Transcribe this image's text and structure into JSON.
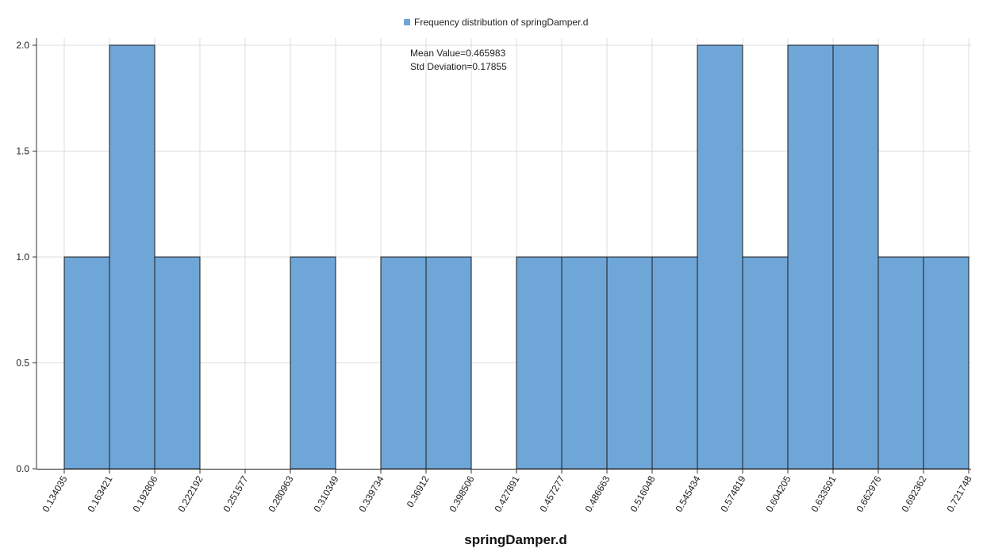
{
  "chart_data": {
    "type": "bar",
    "legend": {
      "label": "Frequency distribution of springDamper.d",
      "position": "top-center"
    },
    "stats": {
      "mean": "Mean Value=0.465983",
      "std": "Std Deviation=0.17855"
    },
    "xlabel": "springDamper.d",
    "ylabel": "",
    "x_ticks": [
      "0.134035",
      "0.163421",
      "0.192806",
      "0.222192",
      "0.251577",
      "0.280963",
      "0.310349",
      "0.339734",
      "0.36912",
      "0.398506",
      "0.427891",
      "0.457277",
      "0.486663",
      "0.516048",
      "0.545434",
      "0.574819",
      "0.604205",
      "0.633591",
      "0.662976",
      "0.692362",
      "0.721748"
    ],
    "bin_edges": [
      0.134035,
      0.163421,
      0.192806,
      0.222192,
      0.251577,
      0.280963,
      0.310349,
      0.339734,
      0.36912,
      0.398506,
      0.427891,
      0.457277,
      0.486663,
      0.516048,
      0.545434,
      0.574819,
      0.604205,
      0.633591,
      0.662976,
      0.692362,
      0.721748
    ],
    "values": [
      1,
      2,
      1,
      0,
      0,
      1,
      0,
      1,
      1,
      0,
      1,
      1,
      1,
      1,
      2,
      1,
      2,
      2,
      1,
      1
    ],
    "y_ticks": [
      "0.0",
      "0.5",
      "1.0",
      "1.5",
      "2.0"
    ],
    "ylim": [
      0,
      2
    ],
    "grid": true,
    "colors": {
      "bar_fill": "#6fa6d8",
      "bar_stroke": "#1a1a1a",
      "grid": "#dcdcdc",
      "axis": "#333333"
    }
  }
}
